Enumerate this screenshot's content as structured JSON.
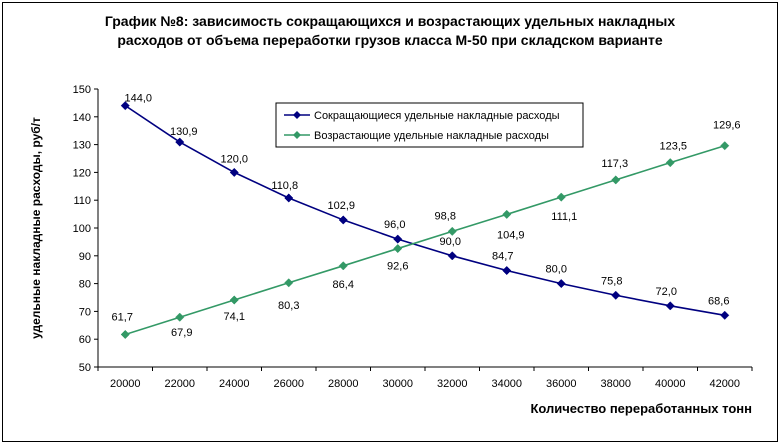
{
  "title": {
    "line1": "График №8: зависимость сокращающихся и возрастающих удельных накладных",
    "line2": "расходов от объема переработки грузов класса М-50 при складском варианте"
  },
  "chart_data": {
    "type": "line",
    "title": "График №8: зависимость сокращающихся и возрастающих удельных накладных расходов от объема переработки грузов класса М-50 при складском варианте",
    "xlabel": "Количество переработанных тонн",
    "ylabel": "удельные накладные расходы, руб/т",
    "x": [
      20000,
      22000,
      24000,
      26000,
      28000,
      30000,
      32000,
      34000,
      36000,
      38000,
      40000,
      42000
    ],
    "xlim": [
      19000,
      43000
    ],
    "ylim": [
      50,
      150
    ],
    "yticks": [
      50,
      60,
      70,
      80,
      90,
      100,
      110,
      120,
      130,
      140,
      150
    ],
    "grid": false,
    "legend_position": "top-center",
    "series": [
      {
        "name": "Сокращающиеся удельные накладные расходы",
        "color": "#000080",
        "marker": "diamond",
        "values": [
          144.0,
          130.9,
          120.0,
          110.8,
          102.9,
          96.0,
          90.0,
          84.7,
          80.0,
          75.8,
          72.0,
          68.6
        ],
        "labels": [
          "144,0",
          "130,9",
          "120,0",
          "110,8",
          "102,9",
          "96,0",
          "90,0",
          "84,7",
          "80,0",
          "75,8",
          "72,0",
          "68,6"
        ]
      },
      {
        "name": "Возрастающие удельные накладные расходы",
        "color": "#339966",
        "marker": "diamond",
        "values": [
          61.7,
          67.9,
          74.1,
          80.3,
          86.4,
          92.6,
          98.8,
          104.9,
          111.1,
          117.3,
          123.5,
          129.6
        ],
        "labels": [
          "61,7",
          "67,9",
          "74,1",
          "80,3",
          "86,4",
          "92,6",
          "98,8",
          "104,9",
          "111,1",
          "117,3",
          "123,5",
          "129,6"
        ]
      }
    ]
  }
}
